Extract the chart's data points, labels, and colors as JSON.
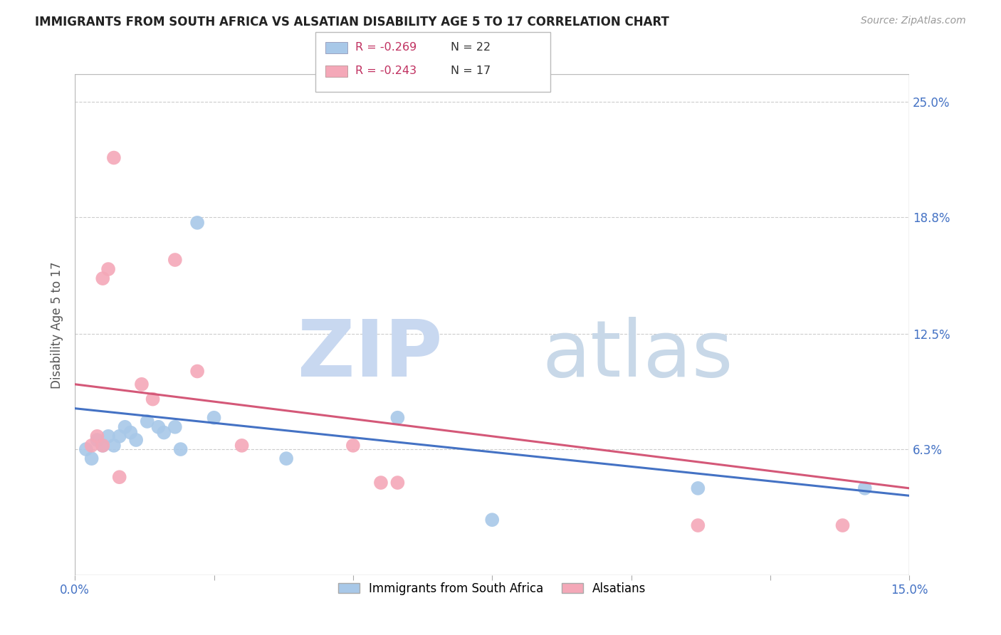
{
  "title": "IMMIGRANTS FROM SOUTH AFRICA VS ALSATIAN DISABILITY AGE 5 TO 17 CORRELATION CHART",
  "source": "Source: ZipAtlas.com",
  "ylabel": "Disability Age 5 to 17",
  "xlim": [
    0.0,
    0.15
  ],
  "ylim": [
    -0.005,
    0.265
  ],
  "xticks": [
    0.0,
    0.025,
    0.05,
    0.075,
    0.1,
    0.125,
    0.15
  ],
  "xticklabels": [
    "0.0%",
    "",
    "",
    "",
    "",
    "",
    "15.0%"
  ],
  "ytick_labels": [
    "25.0%",
    "18.8%",
    "12.5%",
    "6.3%"
  ],
  "ytick_values": [
    0.25,
    0.188,
    0.125,
    0.063
  ],
  "blue_scatter_x": [
    0.002,
    0.003,
    0.004,
    0.005,
    0.006,
    0.007,
    0.008,
    0.009,
    0.01,
    0.011,
    0.013,
    0.015,
    0.016,
    0.018,
    0.019,
    0.022,
    0.025,
    0.038,
    0.058,
    0.075,
    0.112,
    0.142
  ],
  "blue_scatter_y": [
    0.063,
    0.058,
    0.068,
    0.065,
    0.07,
    0.065,
    0.07,
    0.075,
    0.072,
    0.068,
    0.078,
    0.075,
    0.072,
    0.075,
    0.063,
    0.185,
    0.08,
    0.058,
    0.08,
    0.025,
    0.042,
    0.042
  ],
  "pink_scatter_x": [
    0.003,
    0.004,
    0.005,
    0.005,
    0.006,
    0.007,
    0.008,
    0.012,
    0.014,
    0.018,
    0.022,
    0.03,
    0.05,
    0.055,
    0.058,
    0.112,
    0.138
  ],
  "pink_scatter_y": [
    0.065,
    0.07,
    0.065,
    0.155,
    0.16,
    0.22,
    0.048,
    0.098,
    0.09,
    0.165,
    0.105,
    0.065,
    0.065,
    0.045,
    0.045,
    0.022,
    0.022
  ],
  "blue_line_x": [
    0.0,
    0.15
  ],
  "blue_line_y": [
    0.085,
    0.038
  ],
  "pink_line_x": [
    0.0,
    0.15
  ],
  "pink_line_y": [
    0.098,
    0.042
  ],
  "legend_blue_r": "R = -0.269",
  "legend_blue_n": "N = 22",
  "legend_pink_r": "R = -0.243",
  "legend_pink_n": "N = 17",
  "legend_label_blue": "Immigrants from South Africa",
  "legend_label_pink": "Alsatians",
  "blue_color": "#a8c8e8",
  "pink_color": "#f4a8b8",
  "blue_line_color": "#4472c4",
  "pink_line_color": "#d45878",
  "title_color": "#222222",
  "axis_label_color": "#555555",
  "tick_color": "#4472c4",
  "grid_color": "#cccccc",
  "background_color": "#ffffff",
  "watermark_zip_color": "#c8d8f0",
  "watermark_atlas_color": "#c8d8e8",
  "legend_r_color": "#c03060",
  "legend_n_color": "#333333"
}
